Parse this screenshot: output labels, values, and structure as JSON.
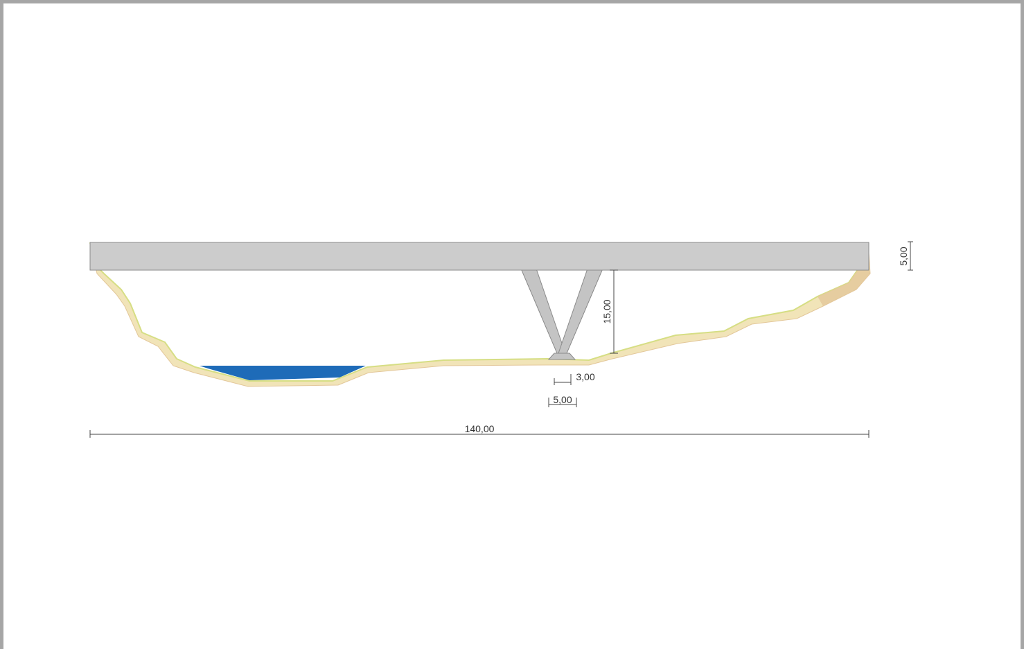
{
  "colors": {
    "frame": "#a6a6a6",
    "deck": "#cccccc",
    "deck_stroke": "#8a8a8a",
    "pier": "#c4c4c4",
    "terrain_fill": "#f1e4b8",
    "terrain_edge": "#e3c79a",
    "terrain_outline": "#d6de84",
    "water": "#1e6bb8",
    "dimension": "#444444"
  },
  "dimensions": {
    "span_length": "140,00",
    "deck_depth": "5,00",
    "pier_height": "15,00",
    "pier_top_width": "3,00",
    "pier_base_width": "5,00"
  }
}
